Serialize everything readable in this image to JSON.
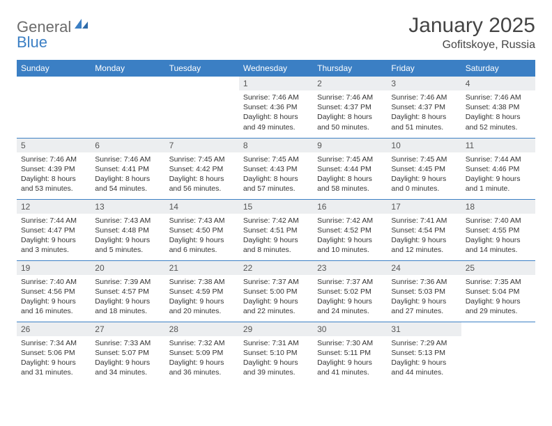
{
  "logo": {
    "part1": "General",
    "part2": "Blue"
  },
  "title": "January 2025",
  "location": "Gofitskoye, Russia",
  "colors": {
    "header_bg": "#3b7fc4",
    "daynum_bg": "#eceef0",
    "border": "#3b7fc4"
  },
  "daynames": [
    "Sunday",
    "Monday",
    "Tuesday",
    "Wednesday",
    "Thursday",
    "Friday",
    "Saturday"
  ],
  "weeks": [
    [
      null,
      null,
      null,
      {
        "n": "1",
        "sr": "Sunrise: 7:46 AM",
        "ss": "Sunset: 4:36 PM",
        "dl": "Daylight: 8 hours and 49 minutes."
      },
      {
        "n": "2",
        "sr": "Sunrise: 7:46 AM",
        "ss": "Sunset: 4:37 PM",
        "dl": "Daylight: 8 hours and 50 minutes."
      },
      {
        "n": "3",
        "sr": "Sunrise: 7:46 AM",
        "ss": "Sunset: 4:37 PM",
        "dl": "Daylight: 8 hours and 51 minutes."
      },
      {
        "n": "4",
        "sr": "Sunrise: 7:46 AM",
        "ss": "Sunset: 4:38 PM",
        "dl": "Daylight: 8 hours and 52 minutes."
      }
    ],
    [
      {
        "n": "5",
        "sr": "Sunrise: 7:46 AM",
        "ss": "Sunset: 4:39 PM",
        "dl": "Daylight: 8 hours and 53 minutes."
      },
      {
        "n": "6",
        "sr": "Sunrise: 7:46 AM",
        "ss": "Sunset: 4:41 PM",
        "dl": "Daylight: 8 hours and 54 minutes."
      },
      {
        "n": "7",
        "sr": "Sunrise: 7:45 AM",
        "ss": "Sunset: 4:42 PM",
        "dl": "Daylight: 8 hours and 56 minutes."
      },
      {
        "n": "8",
        "sr": "Sunrise: 7:45 AM",
        "ss": "Sunset: 4:43 PM",
        "dl": "Daylight: 8 hours and 57 minutes."
      },
      {
        "n": "9",
        "sr": "Sunrise: 7:45 AM",
        "ss": "Sunset: 4:44 PM",
        "dl": "Daylight: 8 hours and 58 minutes."
      },
      {
        "n": "10",
        "sr": "Sunrise: 7:45 AM",
        "ss": "Sunset: 4:45 PM",
        "dl": "Daylight: 9 hours and 0 minutes."
      },
      {
        "n": "11",
        "sr": "Sunrise: 7:44 AM",
        "ss": "Sunset: 4:46 PM",
        "dl": "Daylight: 9 hours and 1 minute."
      }
    ],
    [
      {
        "n": "12",
        "sr": "Sunrise: 7:44 AM",
        "ss": "Sunset: 4:47 PM",
        "dl": "Daylight: 9 hours and 3 minutes."
      },
      {
        "n": "13",
        "sr": "Sunrise: 7:43 AM",
        "ss": "Sunset: 4:48 PM",
        "dl": "Daylight: 9 hours and 5 minutes."
      },
      {
        "n": "14",
        "sr": "Sunrise: 7:43 AM",
        "ss": "Sunset: 4:50 PM",
        "dl": "Daylight: 9 hours and 6 minutes."
      },
      {
        "n": "15",
        "sr": "Sunrise: 7:42 AM",
        "ss": "Sunset: 4:51 PM",
        "dl": "Daylight: 9 hours and 8 minutes."
      },
      {
        "n": "16",
        "sr": "Sunrise: 7:42 AM",
        "ss": "Sunset: 4:52 PM",
        "dl": "Daylight: 9 hours and 10 minutes."
      },
      {
        "n": "17",
        "sr": "Sunrise: 7:41 AM",
        "ss": "Sunset: 4:54 PM",
        "dl": "Daylight: 9 hours and 12 minutes."
      },
      {
        "n": "18",
        "sr": "Sunrise: 7:40 AM",
        "ss": "Sunset: 4:55 PM",
        "dl": "Daylight: 9 hours and 14 minutes."
      }
    ],
    [
      {
        "n": "19",
        "sr": "Sunrise: 7:40 AM",
        "ss": "Sunset: 4:56 PM",
        "dl": "Daylight: 9 hours and 16 minutes."
      },
      {
        "n": "20",
        "sr": "Sunrise: 7:39 AM",
        "ss": "Sunset: 4:57 PM",
        "dl": "Daylight: 9 hours and 18 minutes."
      },
      {
        "n": "21",
        "sr": "Sunrise: 7:38 AM",
        "ss": "Sunset: 4:59 PM",
        "dl": "Daylight: 9 hours and 20 minutes."
      },
      {
        "n": "22",
        "sr": "Sunrise: 7:37 AM",
        "ss": "Sunset: 5:00 PM",
        "dl": "Daylight: 9 hours and 22 minutes."
      },
      {
        "n": "23",
        "sr": "Sunrise: 7:37 AM",
        "ss": "Sunset: 5:02 PM",
        "dl": "Daylight: 9 hours and 24 minutes."
      },
      {
        "n": "24",
        "sr": "Sunrise: 7:36 AM",
        "ss": "Sunset: 5:03 PM",
        "dl": "Daylight: 9 hours and 27 minutes."
      },
      {
        "n": "25",
        "sr": "Sunrise: 7:35 AM",
        "ss": "Sunset: 5:04 PM",
        "dl": "Daylight: 9 hours and 29 minutes."
      }
    ],
    [
      {
        "n": "26",
        "sr": "Sunrise: 7:34 AM",
        "ss": "Sunset: 5:06 PM",
        "dl": "Daylight: 9 hours and 31 minutes."
      },
      {
        "n": "27",
        "sr": "Sunrise: 7:33 AM",
        "ss": "Sunset: 5:07 PM",
        "dl": "Daylight: 9 hours and 34 minutes."
      },
      {
        "n": "28",
        "sr": "Sunrise: 7:32 AM",
        "ss": "Sunset: 5:09 PM",
        "dl": "Daylight: 9 hours and 36 minutes."
      },
      {
        "n": "29",
        "sr": "Sunrise: 7:31 AM",
        "ss": "Sunset: 5:10 PM",
        "dl": "Daylight: 9 hours and 39 minutes."
      },
      {
        "n": "30",
        "sr": "Sunrise: 7:30 AM",
        "ss": "Sunset: 5:11 PM",
        "dl": "Daylight: 9 hours and 41 minutes."
      },
      {
        "n": "31",
        "sr": "Sunrise: 7:29 AM",
        "ss": "Sunset: 5:13 PM",
        "dl": "Daylight: 9 hours and 44 minutes."
      },
      null
    ]
  ]
}
